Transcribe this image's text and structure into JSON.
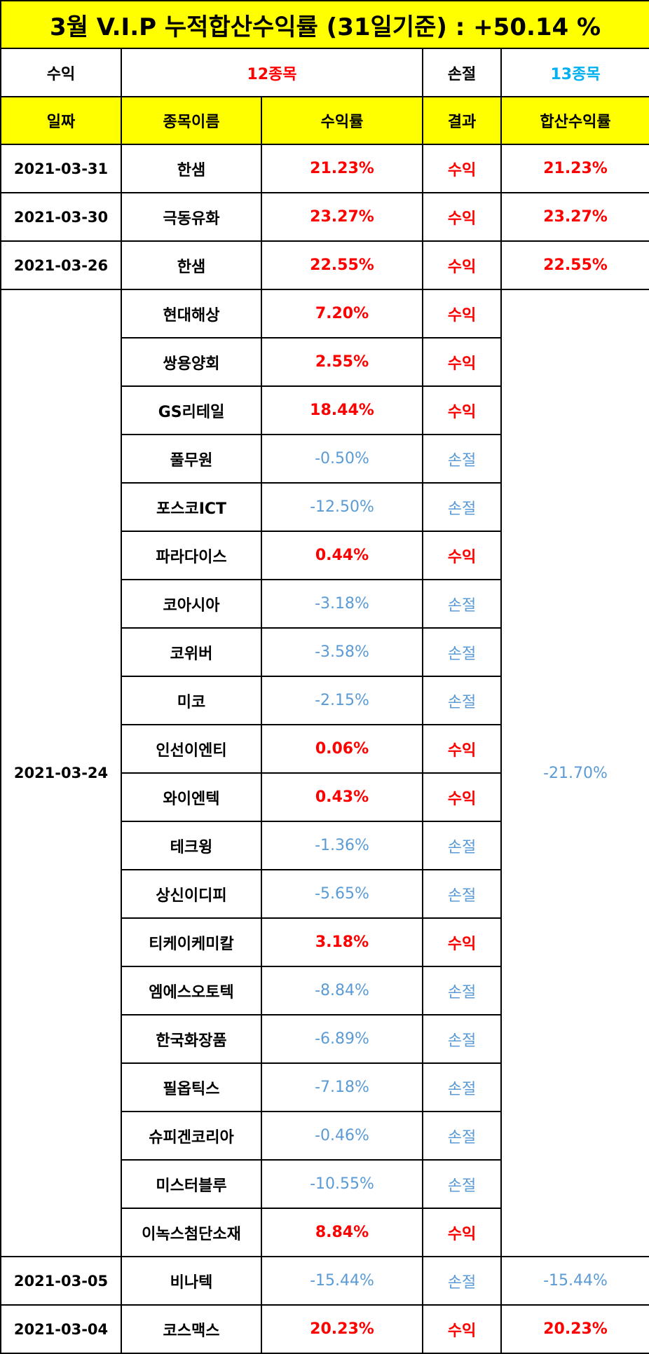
{
  "title": "3월 V.I.P 누적합산수익률 (31일기준) : +50.14 %",
  "summary": {
    "profit_label": "수익",
    "profit_count": "12종목",
    "loss_label": "손절",
    "loss_count": "13종목"
  },
  "headers": [
    "일짜",
    "종목이름",
    "수익률",
    "결과",
    "합산수익률"
  ],
  "groups": [
    {
      "date": "2021-03-31",
      "total": "21.23%",
      "total_type": "profit",
      "rows": [
        {
          "name": "한샘",
          "rate": "21.23%",
          "result": "수익",
          "type": "profit"
        }
      ]
    },
    {
      "date": "2021-03-30",
      "total": "23.27%",
      "total_type": "profit",
      "rows": [
        {
          "name": "극동유화",
          "rate": "23.27%",
          "result": "수익",
          "type": "profit"
        }
      ]
    },
    {
      "date": "2021-03-26",
      "total": "22.55%",
      "total_type": "profit",
      "rows": [
        {
          "name": "한샘",
          "rate": "22.55%",
          "result": "수익",
          "type": "profit"
        }
      ]
    },
    {
      "date": "2021-03-24",
      "total": "-21.70%",
      "total_type": "loss",
      "rows": [
        {
          "name": "현대해상",
          "rate": "7.20%",
          "result": "수익",
          "type": "profit"
        },
        {
          "name": "쌍용양회",
          "rate": "2.55%",
          "result": "수익",
          "type": "profit"
        },
        {
          "name": "GS리테일",
          "rate": "18.44%",
          "result": "수익",
          "type": "profit"
        },
        {
          "name": "풀무원",
          "rate": "-0.50%",
          "result": "손절",
          "type": "loss"
        },
        {
          "name": "포스코ICT",
          "rate": "-12.50%",
          "result": "손절",
          "type": "loss"
        },
        {
          "name": "파라다이스",
          "rate": "0.44%",
          "result": "수익",
          "type": "profit"
        },
        {
          "name": "코아시아",
          "rate": "-3.18%",
          "result": "손절",
          "type": "loss"
        },
        {
          "name": "코위버",
          "rate": "-3.58%",
          "result": "손절",
          "type": "loss"
        },
        {
          "name": "미코",
          "rate": "-2.15%",
          "result": "손절",
          "type": "loss"
        },
        {
          "name": "인선이엔티",
          "rate": "0.06%",
          "result": "수익",
          "type": "profit"
        },
        {
          "name": "와이엔텍",
          "rate": "0.43%",
          "result": "수익",
          "type": "profit"
        },
        {
          "name": "테크윙",
          "rate": "-1.36%",
          "result": "손절",
          "type": "loss"
        },
        {
          "name": "상신이디피",
          "rate": "-5.65%",
          "result": "손절",
          "type": "loss"
        },
        {
          "name": "티케이케미칼",
          "rate": "3.18%",
          "result": "수익",
          "type": "profit"
        },
        {
          "name": "엠에스오토텍",
          "rate": "-8.84%",
          "result": "손절",
          "type": "loss"
        },
        {
          "name": "한국화장품",
          "rate": "-6.89%",
          "result": "손절",
          "type": "loss"
        },
        {
          "name": "필옵틱스",
          "rate": "-7.18%",
          "result": "손절",
          "type": "loss"
        },
        {
          "name": "슈피겐코리아",
          "rate": "-0.46%",
          "result": "손절",
          "type": "loss"
        },
        {
          "name": "미스터블루",
          "rate": "-10.55%",
          "result": "손절",
          "type": "loss"
        },
        {
          "name": "이녹스첨단소재",
          "rate": "8.84%",
          "result": "수익",
          "type": "profit"
        }
      ]
    },
    {
      "date": "2021-03-05",
      "total": "-15.44%",
      "total_type": "loss",
      "rows": [
        {
          "name": "비나텍",
          "rate": "-15.44%",
          "result": "손절",
          "type": "loss"
        }
      ]
    },
    {
      "date": "2021-03-04",
      "total": "20.23%",
      "total_type": "profit",
      "rows": [
        {
          "name": "코스맥스",
          "rate": "20.23%",
          "result": "수익",
          "type": "profit"
        }
      ]
    }
  ],
  "colors": {
    "header_bg": "#ffff00",
    "profit": "#ff0000",
    "loss": "#5b9bd5",
    "loss_count": "#00b0f0"
  }
}
